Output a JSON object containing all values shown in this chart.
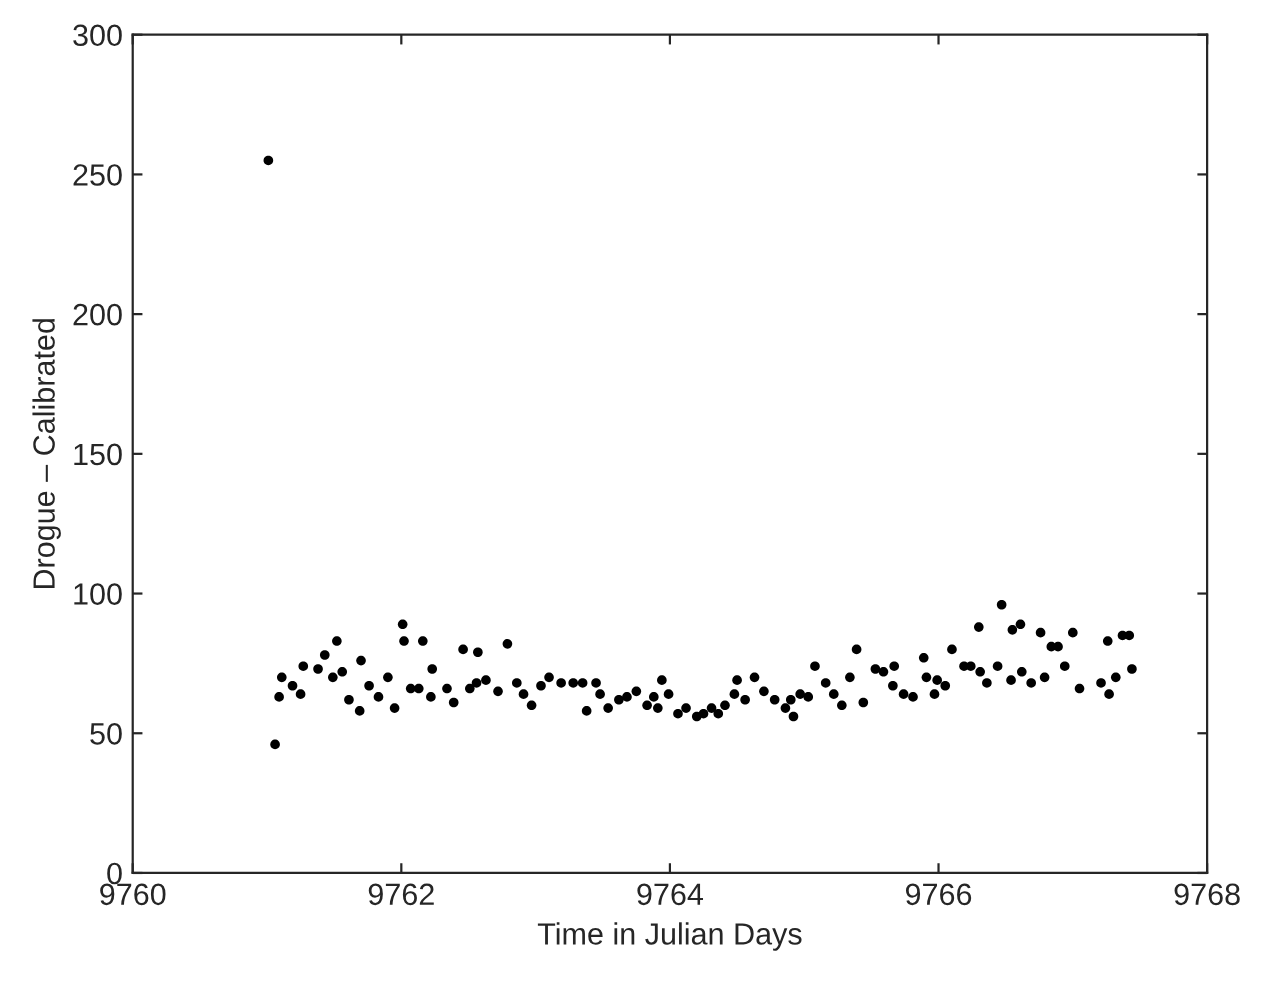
{
  "chart_data": {
    "type": "scatter",
    "xlabel": "Time in Julian Days",
    "ylabel": "Drogue – Calibrated",
    "xlim": [
      9760,
      9768
    ],
    "ylim": [
      0,
      300
    ],
    "xticks": [
      9760,
      9762,
      9764,
      9766,
      9768
    ],
    "yticks": [
      0,
      50,
      100,
      150,
      200,
      250,
      300
    ],
    "grid": false,
    "legend": false,
    "marker": "circle",
    "series": [
      {
        "color": "#000000",
        "x": [
          9761.01,
          9761.06,
          9761.09,
          9761.11,
          9761.19,
          9761.25,
          9761.27,
          9761.38,
          9761.43,
          9761.52,
          9761.49,
          9761.56,
          9761.61,
          9761.69,
          9761.7,
          9761.76,
          9761.83,
          9761.9,
          9761.95,
          9762.01,
          9762.02,
          9762.07,
          9762.13,
          9762.16,
          9762.22,
          9762.23,
          9762.34,
          9762.39,
          9762.46,
          9762.57,
          9762.51,
          9762.56,
          9762.63,
          9762.72,
          9762.79,
          9762.86,
          9762.91,
          9762.97,
          9763.04,
          9763.1,
          9763.19,
          9763.28,
          9763.35,
          9763.45,
          9763.38,
          9763.48,
          9763.54,
          9763.62,
          9763.68,
          9763.75,
          9763.83,
          9763.91,
          9763.94,
          9763.88,
          9763.99,
          9764.06,
          9764.12,
          9764.2,
          9764.25,
          9764.31,
          9764.36,
          9764.41,
          9764.48,
          9764.5,
          9764.56,
          9764.63,
          9764.7,
          9764.78,
          9764.86,
          9764.92,
          9764.9,
          9764.97,
          9765.03,
          9765.08,
          9765.16,
          9765.22,
          9765.28,
          9765.34,
          9765.39,
          9765.44,
          9765.53,
          9765.59,
          9765.67,
          9765.66,
          9765.74,
          9765.81,
          9765.89,
          9765.91,
          9765.97,
          9765.99,
          9766.05,
          9766.1,
          9766.19,
          9766.24,
          9766.3,
          9766.31,
          9766.36,
          9766.44,
          9766.47,
          9766.55,
          9766.61,
          9766.54,
          9766.62,
          9766.69,
          9766.76,
          9766.79,
          9766.84,
          9766.89,
          9766.94,
          9767.0,
          9767.05,
          9767.21,
          9767.27,
          9767.26,
          9767.32,
          9767.37,
          9767.42,
          9767.44
        ],
        "values": [
          255,
          46,
          63,
          70,
          67,
          64,
          74,
          73,
          78,
          83,
          70,
          72,
          62,
          58,
          76,
          67,
          63,
          70,
          59,
          89,
          83,
          66,
          66,
          83,
          63,
          73,
          66,
          61,
          80,
          79,
          66,
          68,
          69,
          65,
          82,
          68,
          64,
          60,
          67,
          70,
          68,
          68,
          68,
          68,
          58,
          64,
          59,
          62,
          63,
          65,
          60,
          59,
          69,
          63,
          64,
          57,
          59,
          56,
          57,
          59,
          57,
          60,
          64,
          69,
          62,
          70,
          65,
          62,
          59,
          56,
          62,
          64,
          63,
          74,
          68,
          64,
          60,
          70,
          80,
          61,
          73,
          72,
          74,
          67,
          64,
          63,
          77,
          70,
          64,
          69,
          67,
          80,
          74,
          74,
          88,
          72,
          68,
          74,
          96,
          87,
          89,
          69,
          72,
          68,
          86,
          70,
          81,
          81,
          74,
          86,
          66,
          68,
          64,
          83,
          70,
          85,
          85,
          73
        ]
      }
    ]
  }
}
